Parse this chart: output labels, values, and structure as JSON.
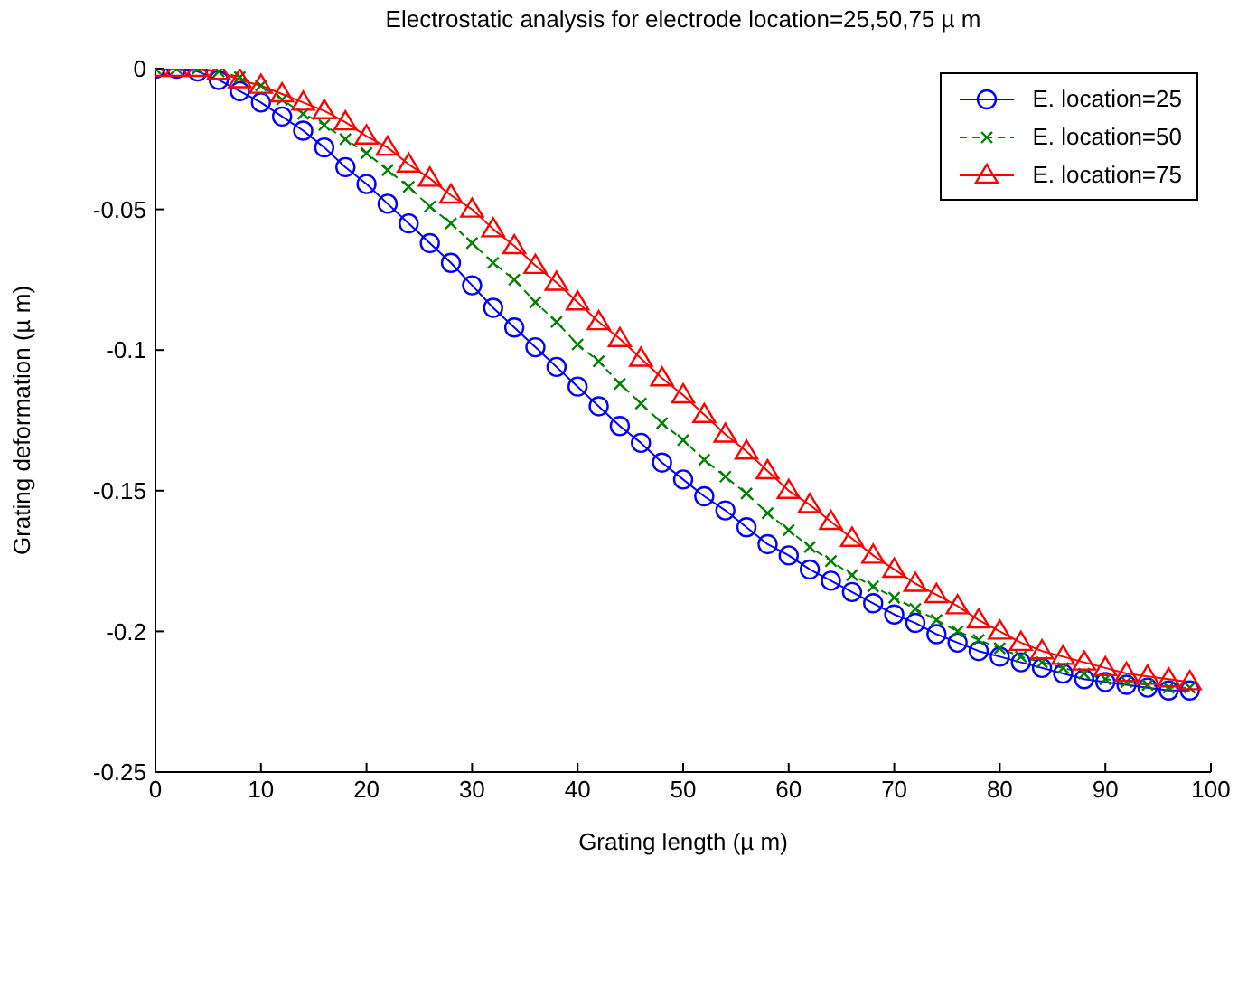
{
  "chart_data": {
    "type": "line",
    "title": "Electrostatic analysis for electrode location=25,50,75 µ m",
    "xlabel": "Grating length (µ m)",
    "ylabel": "Grating deformation (µ m)",
    "x": [
      0,
      2,
      4,
      6,
      8,
      10,
      12,
      14,
      16,
      18,
      20,
      22,
      24,
      26,
      28,
      30,
      32,
      34,
      36,
      38,
      40,
      42,
      44,
      46,
      48,
      50,
      52,
      54,
      56,
      58,
      60,
      62,
      64,
      66,
      68,
      70,
      72,
      74,
      76,
      78,
      80,
      82,
      84,
      86,
      88,
      90,
      92,
      94,
      96,
      98
    ],
    "series": [
      {
        "name": "E. location=25",
        "color": "#0000ff",
        "marker": "circle",
        "line_style": "solid",
        "values": [
          0,
          0,
          -0.001,
          -0.004,
          -0.008,
          -0.012,
          -0.017,
          -0.022,
          -0.028,
          -0.035,
          -0.041,
          -0.048,
          -0.055,
          -0.062,
          -0.069,
          -0.077,
          -0.085,
          -0.092,
          -0.099,
          -0.106,
          -0.113,
          -0.12,
          -0.127,
          -0.133,
          -0.14,
          -0.146,
          -0.152,
          -0.157,
          -0.163,
          -0.169,
          -0.173,
          -0.178,
          -0.182,
          -0.186,
          -0.19,
          -0.194,
          -0.197,
          -0.201,
          -0.204,
          -0.207,
          -0.209,
          -0.211,
          -0.213,
          -0.215,
          -0.217,
          -0.218,
          -0.219,
          -0.22,
          -0.221,
          -0.221
        ]
      },
      {
        "name": "E. location=50",
        "color": "#008000",
        "marker": "cross",
        "line_style": "dashed",
        "values": [
          0,
          0,
          0,
          -0.001,
          -0.003,
          -0.006,
          -0.011,
          -0.016,
          -0.02,
          -0.025,
          -0.03,
          -0.036,
          -0.042,
          -0.049,
          -0.055,
          -0.062,
          -0.069,
          -0.075,
          -0.083,
          -0.09,
          -0.098,
          -0.104,
          -0.112,
          -0.119,
          -0.126,
          -0.132,
          -0.139,
          -0.145,
          -0.151,
          -0.158,
          -0.164,
          -0.17,
          -0.175,
          -0.18,
          -0.184,
          -0.188,
          -0.192,
          -0.196,
          -0.2,
          -0.203,
          -0.206,
          -0.209,
          -0.211,
          -0.213,
          -0.215,
          -0.217,
          -0.218,
          -0.219,
          -0.22,
          -0.22
        ]
      },
      {
        "name": "E. location=75",
        "color": "#ff0000",
        "marker": "triangle",
        "line_style": "solid",
        "values": [
          0,
          0,
          0,
          -0.001,
          -0.004,
          -0.006,
          -0.009,
          -0.012,
          -0.015,
          -0.019,
          -0.024,
          -0.028,
          -0.034,
          -0.039,
          -0.045,
          -0.05,
          -0.057,
          -0.063,
          -0.07,
          -0.076,
          -0.083,
          -0.09,
          -0.096,
          -0.103,
          -0.11,
          -0.116,
          -0.123,
          -0.13,
          -0.136,
          -0.143,
          -0.15,
          -0.155,
          -0.161,
          -0.167,
          -0.173,
          -0.178,
          -0.183,
          -0.187,
          -0.191,
          -0.196,
          -0.2,
          -0.204,
          -0.207,
          -0.209,
          -0.211,
          -0.213,
          -0.215,
          -0.216,
          -0.217,
          -0.218
        ]
      }
    ],
    "xlim": [
      0,
      100
    ],
    "xticks": [
      0,
      10,
      20,
      30,
      40,
      50,
      60,
      70,
      80,
      90,
      100
    ],
    "ylim": [
      -0.25,
      0
    ],
    "yticks": [
      -0.25,
      -0.2,
      -0.15,
      -0.1,
      -0.05,
      0
    ],
    "grid": false,
    "legend": "top right"
  }
}
